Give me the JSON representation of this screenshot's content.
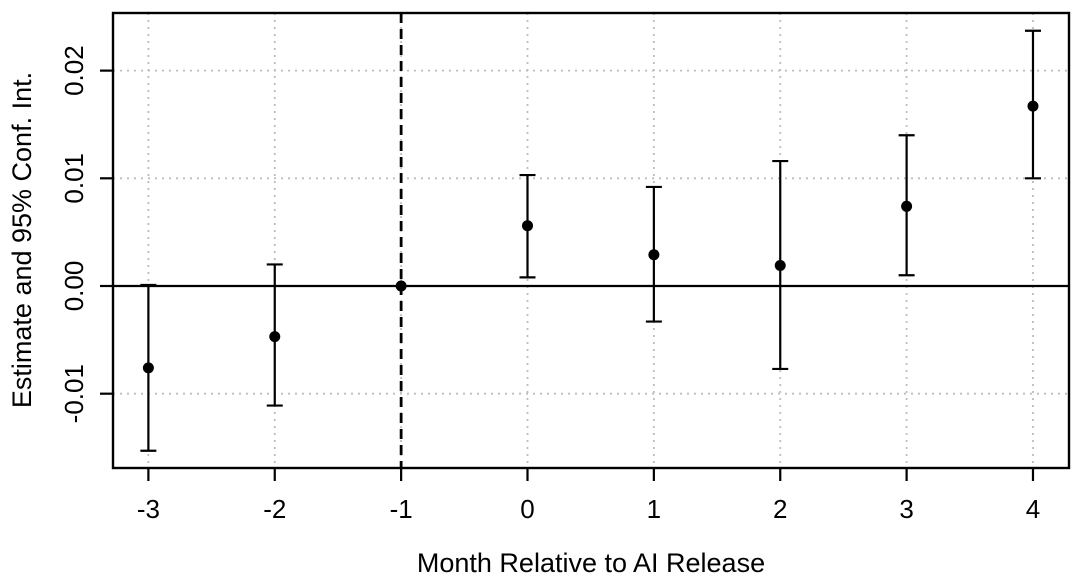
{
  "chart_data": {
    "type": "scatter",
    "subtype": "event-study-errorbar",
    "title": "",
    "xlabel": "Month Relative to AI Release",
    "ylabel": "Estimate and 95% Conf. Int.",
    "x": [
      -3,
      -2,
      -1,
      0,
      1,
      2,
      3,
      4
    ],
    "series": [
      {
        "name": "estimate",
        "values": [
          -0.0076,
          -0.0047,
          0.0,
          0.0056,
          0.0029,
          0.0019,
          0.0074,
          0.0167
        ]
      },
      {
        "name": "ci_lower_95",
        "values": [
          -0.0153,
          -0.0111,
          0.0,
          0.0008,
          -0.0033,
          -0.0077,
          0.001,
          0.01
        ]
      },
      {
        "name": "ci_upper_95",
        "values": [
          0.0001,
          0.002,
          0.0,
          0.0103,
          0.0092,
          0.0116,
          0.014,
          0.0237
        ]
      }
    ],
    "x_ticks": {
      "values": [
        -3,
        -2,
        -1,
        0,
        1,
        2,
        3,
        4
      ],
      "labels": [
        "-3",
        "-2",
        "-1",
        "0",
        "1",
        "2",
        "3",
        "4"
      ]
    },
    "y_ticks": {
      "values": [
        -0.01,
        0.0,
        0.01,
        0.02
      ],
      "labels": [
        "-0.01",
        "0.00",
        "0.01",
        "0.02"
      ]
    },
    "xlim": [
      -3.28,
      4.285
    ],
    "ylim": [
      -0.0169,
      0.02535
    ],
    "reference_vline_x": -1,
    "reference_vline_style": "dashed",
    "zero_hline_y": 0,
    "grid": "dotted",
    "legend_position": "none",
    "marker": "filled-circle",
    "colors": {
      "points": "#000000",
      "error_bars": "#000000",
      "grid": "#BDBDBD",
      "axis": "#000000",
      "reference_lines": "#000000",
      "background": "#FFFFFF"
    }
  }
}
